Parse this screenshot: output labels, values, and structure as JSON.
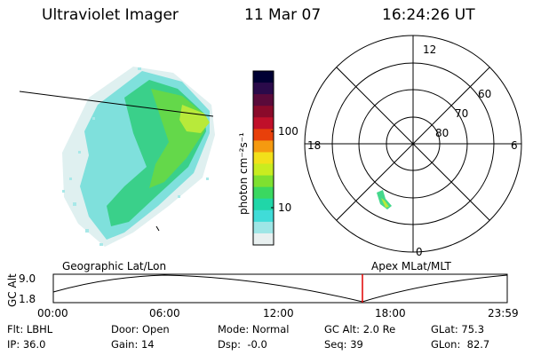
{
  "header": {
    "instrument": "Ultraviolet Imager",
    "date": "11 Mar 07",
    "time": "16:24:26 UT"
  },
  "colorbar": {
    "unit_label": "photon cm⁻²s⁻¹",
    "ticks": [
      "100",
      "10"
    ],
    "colors": [
      "#000033",
      "#2a0a4a",
      "#5a0a3a",
      "#8a0a2a",
      "#c0102a",
      "#e8400a",
      "#f59a10",
      "#f2e01a",
      "#c8ec20",
      "#7ee030",
      "#3ad860",
      "#20d6a8",
      "#40dcd8",
      "#9ee6e6",
      "#e8f0f0"
    ]
  },
  "polar_plot": {
    "mlt_labels": {
      "top": "12",
      "left": "18",
      "right": "6",
      "bottom": "0"
    },
    "lat_labels": [
      "60",
      "70",
      "80"
    ]
  },
  "timeline": {
    "y_axis_label": "GC Alt",
    "y_ticks": [
      "9.0",
      "1.8"
    ],
    "left_caption": "Geographic Lat/Lon",
    "right_caption": "Apex MLat/MLT",
    "x_ticks": [
      "00:00",
      "06:00",
      "12:00",
      "18:00",
      "23:59"
    ],
    "marker_color": "#e00000"
  },
  "footer": {
    "row1": [
      "Flt: LBHL",
      "Door: Open",
      "Mode: Normal",
      "GC Alt: 2.0 Re",
      "GLat: 75.3"
    ],
    "row2": [
      "IP: 36.0",
      "Gain: 14",
      "Dsp:  -0.0",
      "Seq: 39",
      "GLon:  82.7"
    ]
  }
}
